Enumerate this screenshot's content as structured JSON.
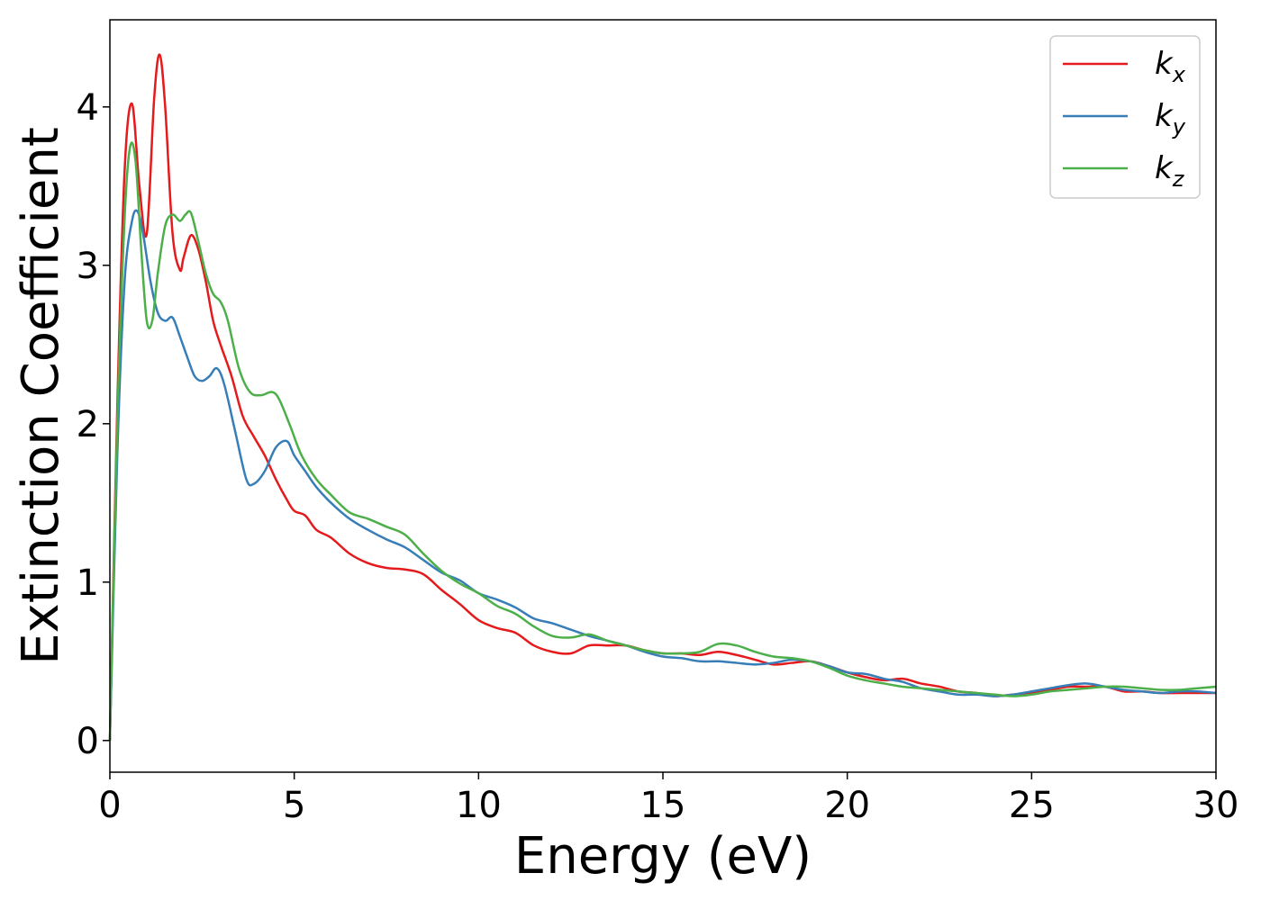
{
  "chart_data": {
    "type": "line",
    "title": "",
    "xlabel": "Energy (eV)",
    "ylabel": "Extinction Coefficient",
    "xlim": [
      0,
      30
    ],
    "ylim": [
      -0.2,
      4.55
    ],
    "xticks": [
      0,
      5,
      10,
      15,
      20,
      25,
      30
    ],
    "yticks": [
      0,
      1,
      2,
      3,
      4
    ],
    "grid": false,
    "legend_position": "top-right",
    "series": [
      {
        "name": "k",
        "subscript": "x",
        "color": "#e41a1c",
        "x": [
          0,
          0.2,
          0.4,
          0.6,
          0.8,
          1.0,
          1.2,
          1.35,
          1.5,
          1.7,
          1.9,
          2.0,
          2.2,
          2.4,
          2.6,
          2.8,
          3.0,
          3.3,
          3.6,
          3.9,
          4.2,
          4.5,
          4.8,
          5.0,
          5.3,
          5.6,
          6.0,
          6.5,
          7.0,
          7.5,
          8.0,
          8.5,
          9.0,
          9.5,
          10.0,
          10.5,
          11.0,
          11.5,
          12.0,
          12.5,
          13.0,
          13.5,
          14.0,
          14.5,
          15.0,
          15.5,
          16.0,
          16.5,
          17.0,
          17.5,
          18.0,
          18.5,
          19.0,
          19.5,
          20.0,
          20.5,
          21.0,
          21.5,
          22.0,
          22.5,
          23.0,
          23.5,
          24.0,
          24.5,
          25.0,
          25.5,
          26.0,
          26.5,
          27.0,
          27.5,
          28.0,
          28.5,
          29.0,
          29.5,
          30.0
        ],
        "values": [
          0.0,
          2.1,
          3.6,
          4.02,
          3.5,
          3.2,
          4.05,
          4.33,
          4.0,
          3.2,
          2.97,
          3.05,
          3.19,
          3.1,
          2.9,
          2.65,
          2.5,
          2.3,
          2.05,
          1.92,
          1.8,
          1.65,
          1.52,
          1.45,
          1.42,
          1.33,
          1.28,
          1.18,
          1.12,
          1.09,
          1.08,
          1.05,
          0.95,
          0.86,
          0.76,
          0.71,
          0.68,
          0.6,
          0.56,
          0.55,
          0.6,
          0.6,
          0.6,
          0.57,
          0.55,
          0.55,
          0.54,
          0.56,
          0.54,
          0.51,
          0.48,
          0.49,
          0.5,
          0.47,
          0.43,
          0.4,
          0.38,
          0.39,
          0.36,
          0.34,
          0.31,
          0.3,
          0.28,
          0.29,
          0.3,
          0.32,
          0.34,
          0.34,
          0.34,
          0.31,
          0.31,
          0.3,
          0.3,
          0.3,
          0.3
        ]
      },
      {
        "name": "k",
        "subscript": "y",
        "color": "#377eb8",
        "x": [
          0,
          0.2,
          0.4,
          0.6,
          0.75,
          0.9,
          1.1,
          1.3,
          1.5,
          1.7,
          1.9,
          2.1,
          2.3,
          2.5,
          2.7,
          2.9,
          3.1,
          3.4,
          3.7,
          3.9,
          4.2,
          4.5,
          4.8,
          5.0,
          5.3,
          5.6,
          6.0,
          6.5,
          7.0,
          7.5,
          8.0,
          8.5,
          9.0,
          9.5,
          10.0,
          10.5,
          11.0,
          11.5,
          12.0,
          12.5,
          13.0,
          13.5,
          14.0,
          14.5,
          15.0,
          15.5,
          16.0,
          16.5,
          17.0,
          17.5,
          18.0,
          18.5,
          19.0,
          19.5,
          20.0,
          20.5,
          21.0,
          21.5,
          22.0,
          22.5,
          23.0,
          23.5,
          24.0,
          24.5,
          25.0,
          25.5,
          26.0,
          26.5,
          27.0,
          27.5,
          28.0,
          28.5,
          29.0,
          29.5,
          30.0
        ],
        "values": [
          0.0,
          1.8,
          2.9,
          3.28,
          3.34,
          3.2,
          2.9,
          2.7,
          2.65,
          2.67,
          2.55,
          2.42,
          2.3,
          2.27,
          2.3,
          2.35,
          2.25,
          1.95,
          1.65,
          1.62,
          1.7,
          1.85,
          1.89,
          1.8,
          1.7,
          1.6,
          1.5,
          1.4,
          1.33,
          1.27,
          1.22,
          1.14,
          1.06,
          1.01,
          0.93,
          0.89,
          0.84,
          0.77,
          0.74,
          0.7,
          0.66,
          0.63,
          0.6,
          0.56,
          0.53,
          0.52,
          0.5,
          0.5,
          0.49,
          0.48,
          0.49,
          0.51,
          0.5,
          0.47,
          0.43,
          0.42,
          0.39,
          0.37,
          0.33,
          0.31,
          0.29,
          0.29,
          0.28,
          0.29,
          0.31,
          0.33,
          0.35,
          0.36,
          0.34,
          0.32,
          0.31,
          0.3,
          0.31,
          0.31,
          0.3
        ]
      },
      {
        "name": "k",
        "subscript": "z",
        "color": "#4daf4a",
        "x": [
          0,
          0.2,
          0.4,
          0.55,
          0.7,
          0.85,
          1.0,
          1.15,
          1.3,
          1.5,
          1.7,
          1.9,
          2.05,
          2.2,
          2.4,
          2.6,
          2.8,
          3.0,
          3.2,
          3.5,
          3.8,
          4.1,
          4.4,
          4.6,
          4.9,
          5.2,
          5.6,
          6.0,
          6.5,
          7.0,
          7.5,
          8.0,
          8.5,
          9.0,
          9.5,
          10.0,
          10.5,
          11.0,
          11.5,
          12.0,
          12.5,
          13.0,
          13.5,
          14.0,
          14.5,
          15.0,
          15.5,
          16.0,
          16.5,
          17.0,
          17.5,
          18.0,
          18.5,
          19.0,
          19.5,
          20.0,
          20.5,
          21.0,
          21.5,
          22.0,
          22.5,
          23.0,
          23.5,
          24.0,
          24.5,
          25.0,
          25.5,
          26.0,
          26.5,
          27.0,
          27.5,
          28.0,
          28.5,
          29.0,
          29.5,
          30.0
        ],
        "values": [
          0.0,
          2.0,
          3.3,
          3.75,
          3.65,
          3.1,
          2.65,
          2.65,
          2.95,
          3.25,
          3.32,
          3.28,
          3.32,
          3.33,
          3.15,
          2.95,
          2.82,
          2.77,
          2.65,
          2.35,
          2.2,
          2.18,
          2.2,
          2.15,
          1.98,
          1.8,
          1.65,
          1.55,
          1.44,
          1.4,
          1.35,
          1.3,
          1.18,
          1.07,
          0.99,
          0.93,
          0.85,
          0.8,
          0.72,
          0.66,
          0.65,
          0.67,
          0.63,
          0.6,
          0.57,
          0.55,
          0.55,
          0.56,
          0.61,
          0.6,
          0.56,
          0.53,
          0.52,
          0.5,
          0.46,
          0.41,
          0.38,
          0.36,
          0.34,
          0.33,
          0.32,
          0.31,
          0.3,
          0.29,
          0.28,
          0.29,
          0.31,
          0.32,
          0.33,
          0.34,
          0.34,
          0.33,
          0.32,
          0.32,
          0.33,
          0.34
        ]
      }
    ]
  }
}
